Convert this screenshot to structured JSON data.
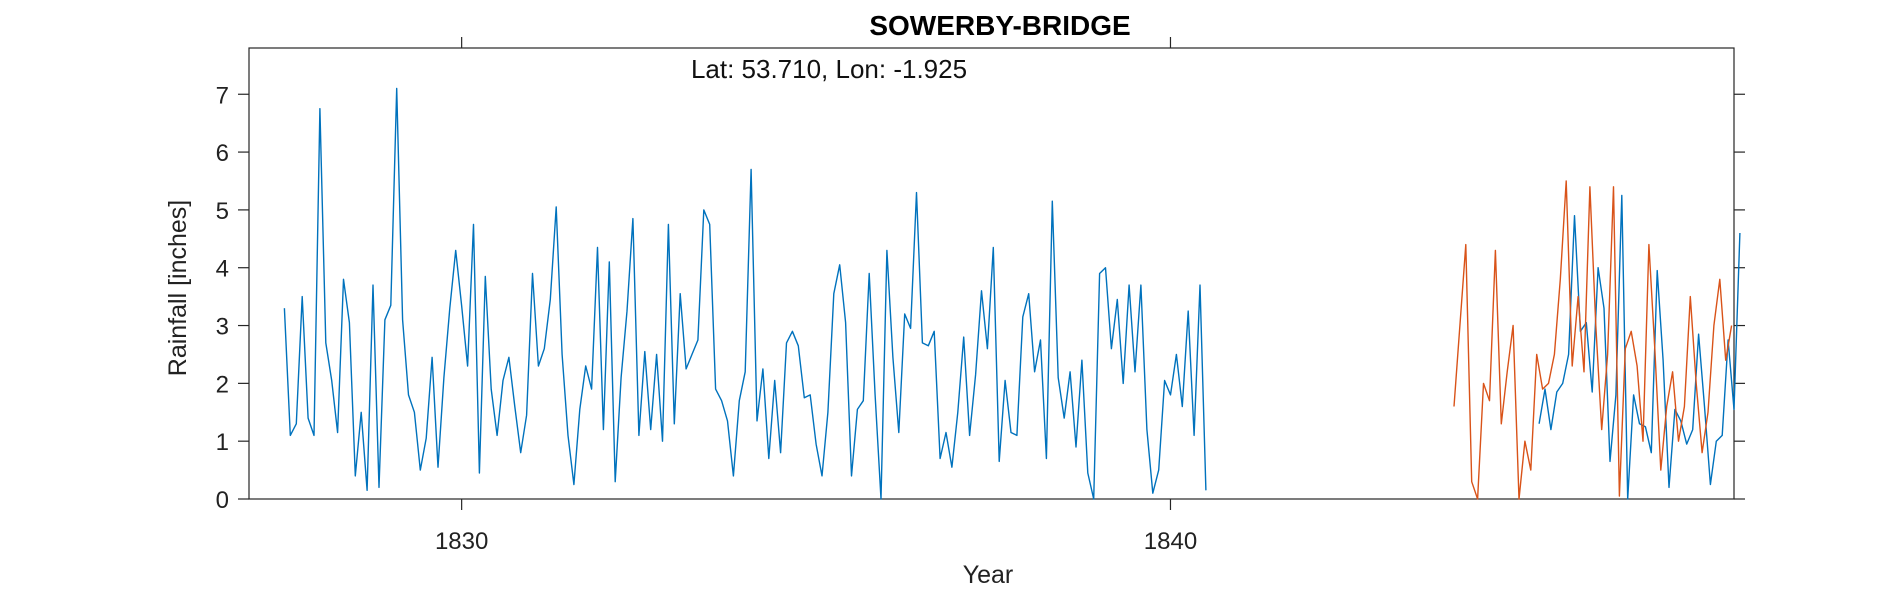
{
  "chart_data": {
    "type": "line",
    "title": "SOWERBY-BRIDGE",
    "annotation": "Lat: 53.710, Lon: -1.925",
    "xlabel": "Year",
    "ylabel": "Rainfall [inches]",
    "xlim": [
      1827,
      1847.95
    ],
    "ylim": [
      0,
      7.8
    ],
    "xticks": [
      1830,
      1840
    ],
    "yticks": [
      0,
      1,
      2,
      3,
      4,
      5,
      6,
      7
    ],
    "grid": false,
    "series": [
      {
        "color": "#0072BD",
        "x_start": 1827.5,
        "x_step": 0.0833333,
        "values": [
          3.3,
          1.1,
          1.3,
          3.5,
          1.4,
          1.1,
          6.75,
          2.7,
          2.05,
          1.15,
          3.8,
          3.05,
          0.4,
          1.5,
          0.15,
          3.7,
          0.2,
          3.1,
          3.35,
          7.1,
          3.1,
          1.8,
          1.5,
          0.5,
          1.05,
          2.45,
          0.55,
          2.1,
          3.3,
          4.3,
          3.35,
          2.3,
          4.75,
          0.45,
          3.85,
          1.9,
          1.1,
          2.05,
          2.45,
          1.6,
          0.8,
          1.45,
          3.9,
          2.3,
          2.6,
          3.45,
          5.05,
          2.5,
          1.1,
          0.25,
          1.55,
          2.3,
          1.9,
          4.35,
          1.2,
          4.1,
          0.3,
          2.1,
          3.25,
          4.85,
          1.1,
          2.55,
          1.2,
          2.5,
          1.0,
          4.75,
          1.3,
          3.55,
          2.25,
          2.5,
          2.75,
          5.0,
          4.75,
          1.9,
          1.7,
          1.35,
          0.4,
          1.7,
          2.2,
          5.7,
          1.35,
          2.25,
          0.7,
          2.05,
          0.8,
          2.7,
          2.9,
          2.65,
          1.75,
          1.8,
          0.95,
          0.4,
          1.5,
          3.55,
          4.05,
          3.05,
          0.4,
          1.55,
          1.7,
          3.9,
          1.8,
          0.0,
          4.3,
          2.45,
          1.15,
          3.2,
          2.95,
          5.3,
          2.7,
          2.65,
          2.9,
          0.7,
          1.15,
          0.55,
          1.5,
          2.8,
          1.1,
          2.15,
          3.6,
          2.6,
          4.35,
          0.65,
          2.05,
          1.15,
          1.1,
          3.15,
          3.55,
          2.2,
          2.75,
          0.7,
          5.15,
          2.1,
          1.4,
          2.2,
          0.9,
          2.4,
          0.45,
          0.0,
          3.9,
          4.0,
          2.6,
          3.45,
          2.0,
          3.7,
          2.2,
          3.7,
          1.2,
          0.1,
          0.5,
          2.05,
          1.8,
          2.5,
          1.6,
          3.25,
          1.1,
          3.7,
          0.15
        ]
      },
      {
        "color": "#0072BD",
        "x_start": 1845.2,
        "x_step": 0.0833333,
        "values": [
          1.3,
          1.9,
          1.2,
          1.85,
          2.0,
          2.5,
          4.9,
          2.9,
          3.05,
          1.85,
          4.0,
          3.3,
          0.65,
          1.8,
          5.25,
          0.0,
          1.8,
          1.3,
          1.25,
          0.8,
          3.95,
          2.4,
          0.2,
          1.55,
          1.35,
          0.95,
          1.2,
          2.85,
          1.6,
          0.25,
          1.0,
          1.1,
          2.75,
          1.55,
          4.6
        ]
      },
      {
        "color": "#D95319",
        "x_start": 1844.0,
        "x_step": 0.0833333,
        "values": [
          1.6,
          3.0,
          4.4,
          0.3,
          0.0,
          2.0,
          1.7,
          4.3,
          1.3,
          2.2,
          3.0,
          0.0,
          1.0,
          0.5,
          2.5,
          1.9,
          2.0,
          2.5,
          3.8,
          5.5,
          2.3,
          3.5,
          2.2,
          5.4,
          3.0,
          1.2,
          2.5,
          5.4,
          0.05,
          2.6,
          2.9,
          2.3,
          1.0,
          4.4,
          2.6,
          0.5,
          1.6,
          2.2,
          1.0,
          1.6,
          3.5,
          2.0,
          0.8,
          1.5,
          3.0,
          3.8,
          2.4,
          3.0
        ]
      }
    ]
  }
}
